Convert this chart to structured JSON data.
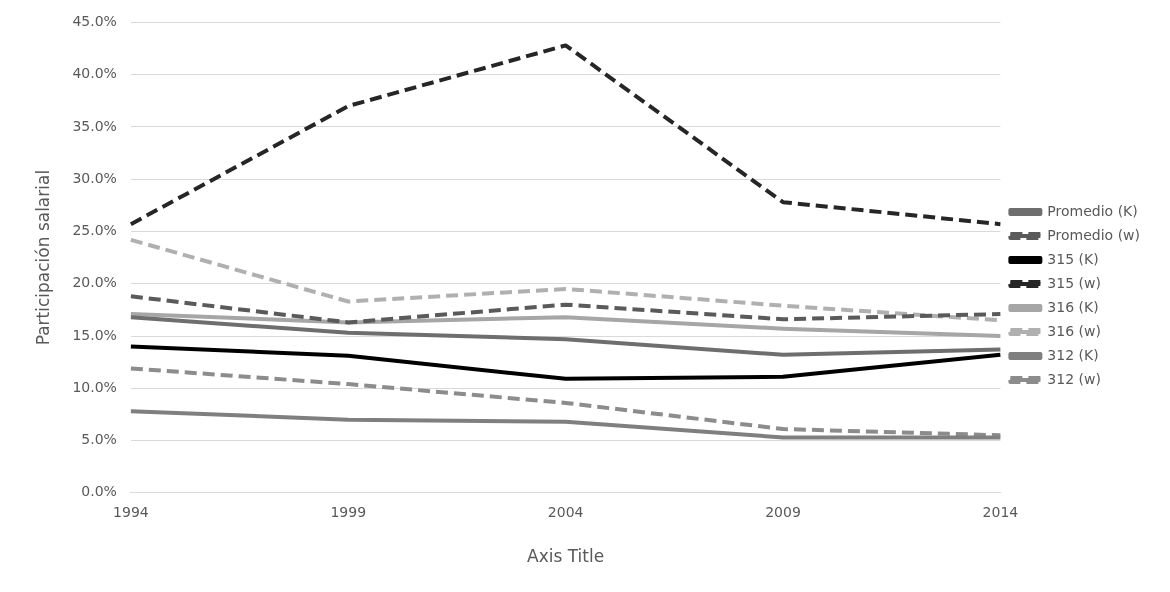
{
  "chart_data": {
    "type": "line",
    "xlabel": "Axis Title",
    "ylabel": "Participación salarial",
    "categories": [
      "1994",
      "1999",
      "2004",
      "2009",
      "2014"
    ],
    "series": [
      {
        "name": "Promedio (K)",
        "color": "#6e6e6e",
        "line_style": "solid",
        "values": [
          16.8,
          15.3,
          14.7,
          13.2,
          13.7
        ]
      },
      {
        "name": "Promedio (w)",
        "color": "#5a5a5a",
        "line_style": "dashed",
        "values": [
          18.8,
          16.3,
          18.0,
          16.6,
          17.1
        ]
      },
      {
        "name": "315 (K)",
        "color": "#000000",
        "line_style": "solid",
        "values": [
          14.0,
          13.1,
          10.9,
          11.1,
          13.2
        ]
      },
      {
        "name": "315 (w)",
        "color": "#262626",
        "line_style": "dashed",
        "values": [
          25.7,
          37.0,
          42.8,
          27.8,
          25.7
        ]
      },
      {
        "name": "316 (K)",
        "color": "#a6a6a6",
        "line_style": "solid",
        "values": [
          17.1,
          16.3,
          16.8,
          15.7,
          15.0
        ]
      },
      {
        "name": "316 (w)",
        "color": "#b0b0b0",
        "line_style": "dashed",
        "values": [
          24.2,
          18.3,
          19.5,
          17.9,
          16.5
        ]
      },
      {
        "name": "312 (K)",
        "color": "#7f7f7f",
        "line_style": "solid",
        "values": [
          7.8,
          7.0,
          6.8,
          5.3,
          5.3
        ]
      },
      {
        "name": "312 (w)",
        "color": "#8c8c8c",
        "line_style": "dashed",
        "values": [
          11.9,
          10.4,
          8.6,
          6.1,
          5.5
        ]
      }
    ],
    "ylim": [
      0,
      45
    ],
    "yticks": [
      {
        "value": 0,
        "label": "0.0%"
      },
      {
        "value": 5,
        "label": "5.0%"
      },
      {
        "value": 10,
        "label": "10.0%"
      },
      {
        "value": 15,
        "label": "15.0%"
      },
      {
        "value": 20,
        "label": "20.0%"
      },
      {
        "value": 25,
        "label": "25.0%"
      },
      {
        "value": 30,
        "label": "30.0%"
      },
      {
        "value": 35,
        "label": "35.0%"
      },
      {
        "value": 40,
        "label": "40.0%"
      },
      {
        "value": 45,
        "label": "45.0%"
      }
    ],
    "grid": "y",
    "legend": "right",
    "marker": "none"
  }
}
